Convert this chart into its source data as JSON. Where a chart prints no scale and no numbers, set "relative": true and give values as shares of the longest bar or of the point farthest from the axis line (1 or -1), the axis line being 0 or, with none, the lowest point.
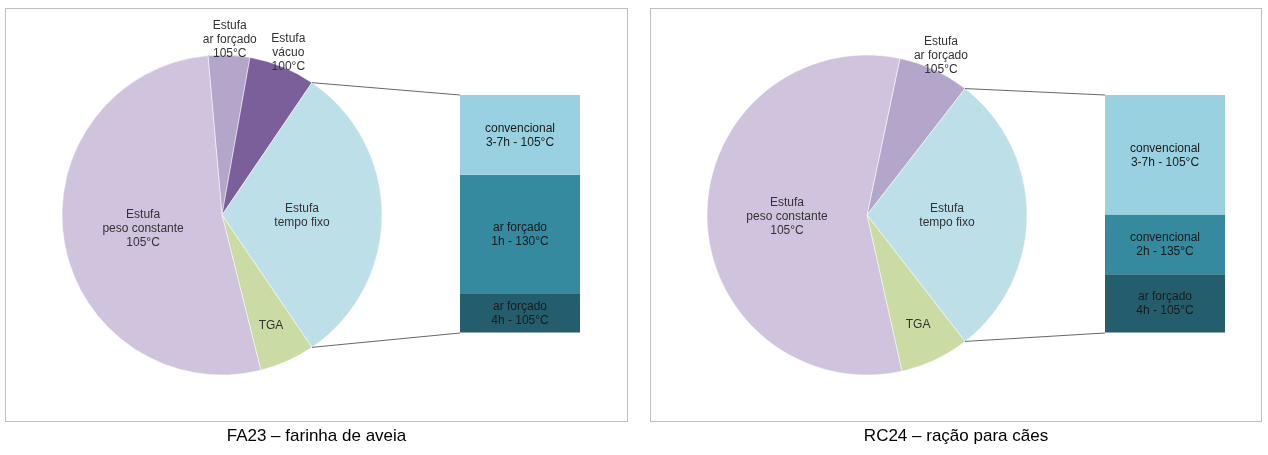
{
  "chart_data": [
    {
      "type": "pie",
      "title": "FA23 – farinha de aveia",
      "categories": [
        "Estufa\nar forçado\n105°C",
        "Estufa\nvácuo\n100°C",
        "Estufa\ntempo fixo",
        "TGA",
        "Estufa\npeso constante\n105°C"
      ],
      "values": [
        4.2,
        6.7,
        31,
        5.6,
        52.5
      ],
      "colors": [
        "#b4a6ca",
        "#7a5f9a",
        "#bde0e8",
        "#cbdba4",
        "#d0c3dd"
      ]
    },
    {
      "type": "bar",
      "stacked": true,
      "relative": true,
      "categories": [
        null
      ],
      "series": [
        {
          "name": "ar forçado\n4h - 105°C",
          "color": "#245e6c",
          "values": [
            0.16
          ]
        },
        {
          "name": "ar forçado\n1h - 130°C",
          "color": "#358a9f",
          "values": [
            0.504
          ]
        },
        {
          "name": "convencional\n3-7h - 105°C",
          "color": "#9ad1e0",
          "values": [
            0.336
          ]
        }
      ]
    },
    {
      "type": "pie",
      "title": "RC24 – ração para cães",
      "categories": [
        "Estufa\nar forçado\n105°C",
        "Estufa\ntempo fixo",
        "TGA",
        "Estufa\npeso constante\n105°C"
      ],
      "values": [
        7.2,
        29,
        7,
        56.8
      ],
      "colors": [
        "#b4a6ca",
        "#bde0e8",
        "#cbdba4",
        "#d0c3dd"
      ]
    },
    {
      "type": "bar",
      "stacked": true,
      "relative": true,
      "categories": [
        null
      ],
      "series": [
        {
          "name": "ar forçado\n4h - 105°C",
          "color": "#245e6c",
          "values": [
            0.244
          ]
        },
        {
          "name": "convencional\n2h - 135°C",
          "color": "#358a9f",
          "values": [
            0.252
          ]
        },
        {
          "name": "convencional\n3-7h - 105°C",
          "color": "#9ad1e0",
          "values": [
            0.504
          ]
        }
      ]
    }
  ]
}
